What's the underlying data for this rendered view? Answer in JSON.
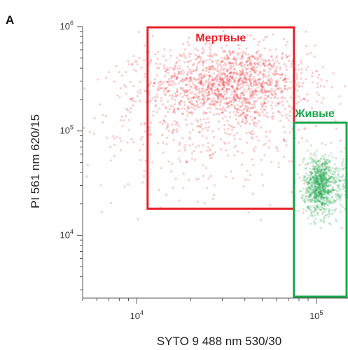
{
  "chart_data": {
    "type": "scatter",
    "panel_label": "A",
    "xlabel": "SYTO 9 488 nm 530/30",
    "ylabel": "PI 561 nm 620/15",
    "x_scale": "log",
    "y_scale": "log",
    "xlim": [
      5000,
      150000
    ],
    "ylim": [
      2500,
      1000000
    ],
    "x_ticks": [
      {
        "value": 10000,
        "base": "10",
        "exp": "4"
      },
      {
        "value": 100000,
        "base": "10",
        "exp": "5"
      }
    ],
    "y_ticks": [
      {
        "value": 10000,
        "base": "10",
        "exp": "4"
      },
      {
        "value": 100000,
        "base": "10",
        "exp": "5"
      },
      {
        "value": 1000000,
        "base": "10",
        "exp": "6"
      }
    ],
    "grid": false,
    "colors": {
      "dead": "#e8202a",
      "live": "#1aa64b",
      "axis": "#555555"
    },
    "gates": [
      {
        "name": "Мертвые",
        "color": "#e8202a",
        "x_range": [
          11500,
          75000
        ],
        "y_range": [
          18000,
          1000000
        ]
      },
      {
        "name": "Живые",
        "color": "#1aa64b",
        "x_range": [
          75000,
          150000
        ],
        "y_range": [
          2500,
          120000
        ]
      }
    ],
    "series": [
      {
        "name": "Мертвые",
        "color": "#e8202a",
        "clusters": [
          {
            "center": [
              33000,
              290000
            ],
            "spread": [
              0.22,
              0.18
            ],
            "weight": 0.72
          },
          {
            "center": [
              26000,
              120000
            ],
            "spread": [
              0.35,
              0.35
            ],
            "weight": 0.28
          }
        ]
      },
      {
        "name": "Живые",
        "color": "#1aa64b",
        "clusters": [
          {
            "center": [
              105000,
              30000
            ],
            "spread": [
              0.045,
              0.14
            ],
            "weight": 0.48
          },
          {
            "center": [
              180000,
              30000
            ],
            "spread": [
              0.06,
              0.14
            ],
            "weight": 0.52
          }
        ]
      }
    ]
  }
}
